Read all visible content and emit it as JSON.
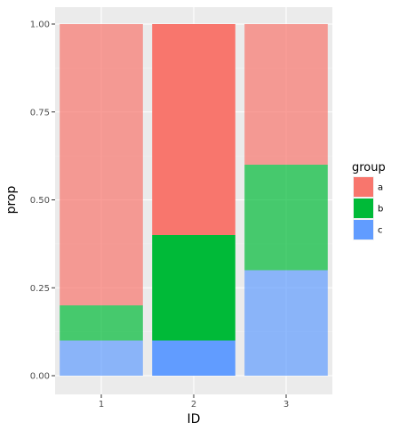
{
  "chart_data": {
    "type": "bar",
    "stacked": true,
    "categories": [
      "1",
      "2",
      "3"
    ],
    "xlabel": "ID",
    "ylabel": "prop",
    "ylim": [
      0,
      1
    ],
    "yticks": [
      "0.00",
      "0.25",
      "0.50",
      "0.75",
      "1.00"
    ],
    "grid": true,
    "legend": {
      "title": "group",
      "position": "right",
      "entries": [
        "a",
        "b",
        "c"
      ]
    },
    "series": [
      {
        "name": "a",
        "values": [
          0.8,
          0.6,
          0.4
        ],
        "color": "#F8766D"
      },
      {
        "name": "b",
        "values": [
          0.1,
          0.3,
          0.3
        ],
        "color": "#00BA38"
      },
      {
        "name": "c",
        "values": [
          0.1,
          0.1,
          0.3
        ],
        "color": "#619CFF"
      }
    ],
    "highlighted_category": "2",
    "dimmed_opacity": 0.7,
    "colors": {
      "panel_background": "#EBEBEB",
      "grid_major": "#FFFFFF",
      "grid_minor": "#F4F4F4",
      "tick_text": "#4D4D4D",
      "legend_key_background": "#F2F2F2"
    }
  }
}
